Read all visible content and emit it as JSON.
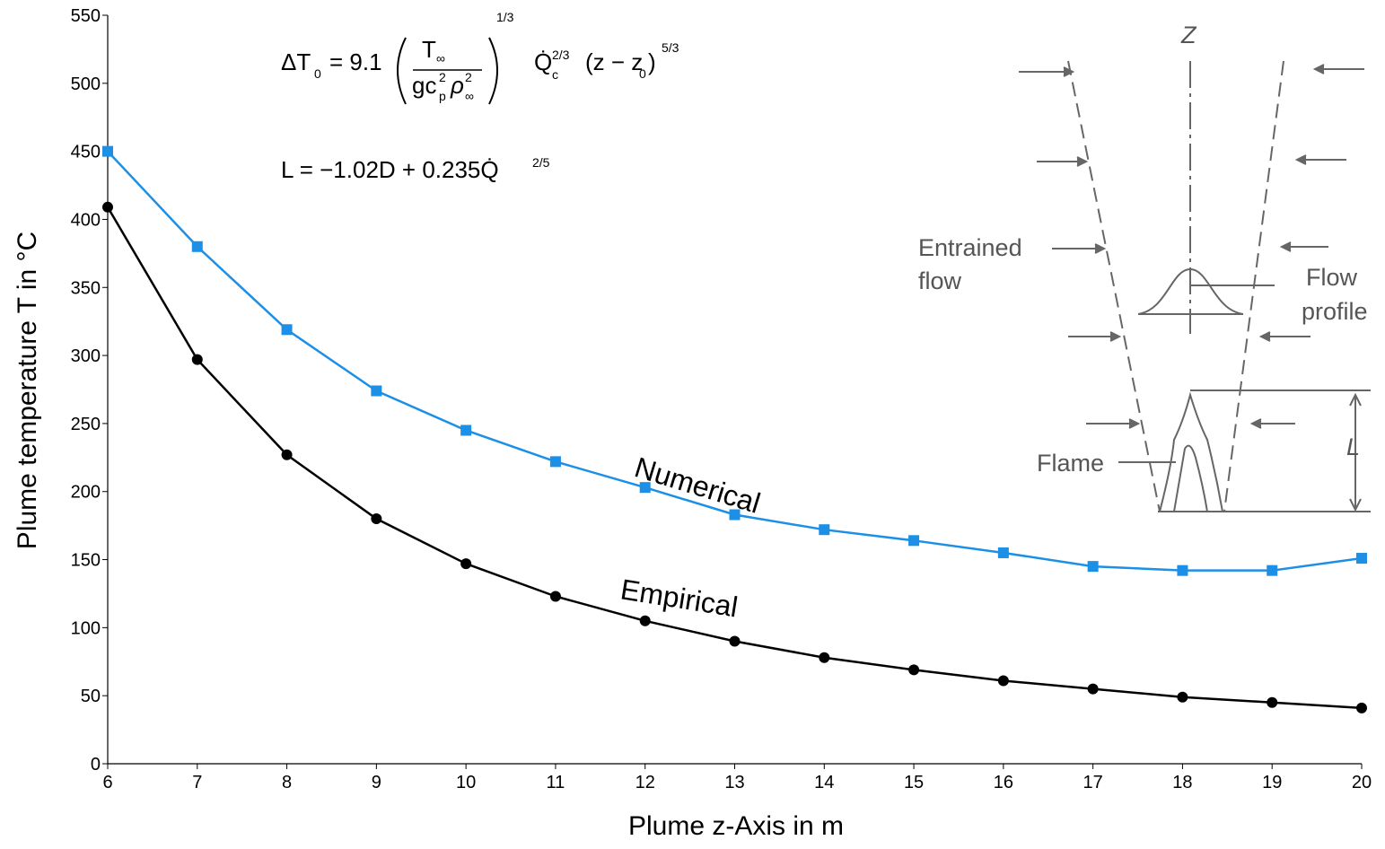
{
  "chart_data": {
    "type": "line",
    "x_label": "Plume z-Axis in m",
    "y_label": "Plume temperature T in °C",
    "x": [
      6,
      7,
      8,
      9,
      10,
      11,
      12,
      13,
      14,
      15,
      16,
      17,
      18,
      19,
      20
    ],
    "series": [
      {
        "name": "Numerical",
        "color": "#1c8fe6",
        "marker": "square",
        "values": [
          450,
          380,
          319,
          274,
          245,
          222,
          203,
          183,
          172,
          164,
          155,
          145,
          142,
          142,
          151
        ]
      },
      {
        "name": "Empirical",
        "color": "#000000",
        "marker": "circle",
        "values": [
          409,
          297,
          227,
          180,
          147,
          123,
          105,
          90,
          78,
          69,
          61,
          55,
          49,
          45,
          41
        ]
      }
    ],
    "xlim": [
      6,
      20
    ],
    "xticks": [
      6,
      7,
      8,
      9,
      10,
      11,
      12,
      13,
      14,
      15,
      16,
      17,
      18,
      19,
      20
    ],
    "ylim": [
      0,
      550
    ],
    "yticks": [
      0,
      50,
      100,
      150,
      200,
      250,
      300,
      350,
      400,
      450,
      500,
      550
    ],
    "grid": false,
    "equation_1": [
      "ΔT",
      "0",
      "= 9.1",
      "T",
      "∞",
      "gc",
      "2",
      "p",
      "ρ",
      "2",
      "∞",
      "1/3",
      "Q̇",
      "2/3",
      "c",
      "(z − z",
      "0",
      ")",
      "5/3"
    ],
    "equation_2": [
      "L = −1.02D + 0.235Q̇",
      "2/5"
    ],
    "diagram": {
      "axis": "Z",
      "entrained": [
        "Entrained",
        "flow"
      ],
      "profile": [
        "Flow",
        "profile"
      ],
      "flame": "Flame",
      "length": "L"
    }
  }
}
